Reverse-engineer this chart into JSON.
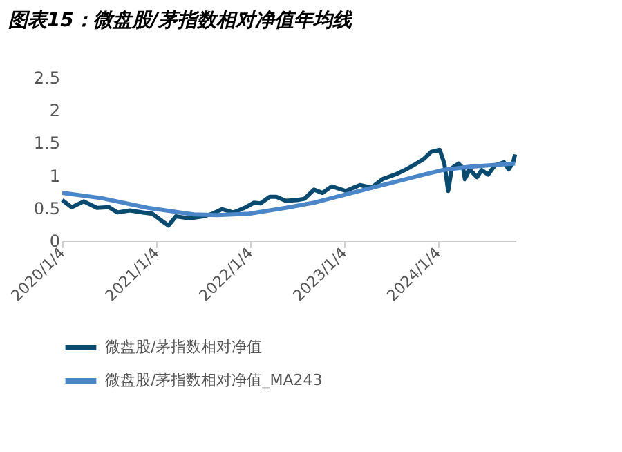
{
  "chart_data": {
    "type": "line",
    "title": "图表15：微盘股/茅指数相对净值年均线",
    "series": [
      {
        "name": "微盘股/茅指数相对净值",
        "color": "#0b4a6f",
        "x": [
          "2020-01-04",
          "2020-02-10",
          "2020-03-28",
          "2020-05-18",
          "2020-07-04",
          "2020-08-06",
          "2020-09-23",
          "2020-11-13",
          "2020-12-20",
          "2021-01-26",
          "2021-02-20",
          "2021-03-21",
          "2021-05-11",
          "2021-07-05",
          "2021-08-10",
          "2021-09-16",
          "2021-10-30",
          "2021-12-13",
          "2022-01-19",
          "2022-02-13",
          "2022-03-21",
          "2022-04-16",
          "2022-05-22",
          "2022-07-05",
          "2022-08-03",
          "2022-09-09",
          "2022-10-12",
          "2022-11-17",
          "2023-01-11",
          "2023-03-07",
          "2023-04-20",
          "2023-06-02",
          "2023-07-27",
          "2023-09-02",
          "2023-10-04",
          "2023-11-10",
          "2023-12-09",
          "2024-01-11",
          "2024-01-29",
          "2024-02-13",
          "2024-02-27",
          "2024-03-24",
          "2024-04-11",
          "2024-04-18",
          "2024-05-06",
          "2024-06-04",
          "2024-06-22",
          "2024-07-17",
          "2024-08-12",
          "2024-09-17",
          "2024-10-05",
          "2024-10-23",
          "2024-10-30"
        ],
        "values": [
          0.62,
          0.51,
          0.6,
          0.5,
          0.51,
          0.43,
          0.46,
          0.43,
          0.41,
          0.3,
          0.23,
          0.37,
          0.34,
          0.37,
          0.41,
          0.48,
          0.43,
          0.5,
          0.58,
          0.57,
          0.67,
          0.67,
          0.61,
          0.62,
          0.64,
          0.78,
          0.73,
          0.83,
          0.76,
          0.85,
          0.81,
          0.94,
          1.02,
          1.09,
          1.16,
          1.25,
          1.36,
          1.39,
          1.18,
          0.76,
          1.11,
          1.18,
          1.11,
          0.94,
          1.09,
          0.97,
          1.08,
          1.01,
          1.15,
          1.2,
          1.09,
          1.2,
          1.32
        ]
      },
      {
        "name": "微盘股/茅指数相对净值_MA243",
        "color": "#4a86c8",
        "x": [
          "2020-01-04",
          "2020-06-04",
          "2020-12-02",
          "2021-05-29",
          "2021-08-28",
          "2021-12-31",
          "2022-05-22",
          "2022-09-09",
          "2022-11-17",
          "2023-05-14",
          "2023-11-10",
          "2024-01-22",
          "2024-05-06",
          "2024-10-30"
        ],
        "values": [
          0.73,
          0.65,
          0.5,
          0.4,
          0.39,
          0.41,
          0.5,
          0.58,
          0.65,
          0.83,
          1.01,
          1.08,
          1.13,
          1.18
        ]
      }
    ],
    "xlim": [
      "2020-01-04",
      "2024-11-01"
    ],
    "xticks": [
      {
        "value": "2020-01-04",
        "label": "2020/1/4"
      },
      {
        "value": "2021-01-04",
        "label": "2021/1/4"
      },
      {
        "value": "2022-01-04",
        "label": "2022/1/4"
      },
      {
        "value": "2023-01-04",
        "label": "2023/1/4"
      },
      {
        "value": "2024-01-04",
        "label": "2024/1/4"
      }
    ],
    "ylim": [
      0,
      2.5
    ],
    "yticks": [
      0,
      0.5,
      1,
      1.5,
      2,
      2.5
    ],
    "grid": false,
    "legend": "bottom",
    "marker": "none",
    "line_style": "solid"
  }
}
